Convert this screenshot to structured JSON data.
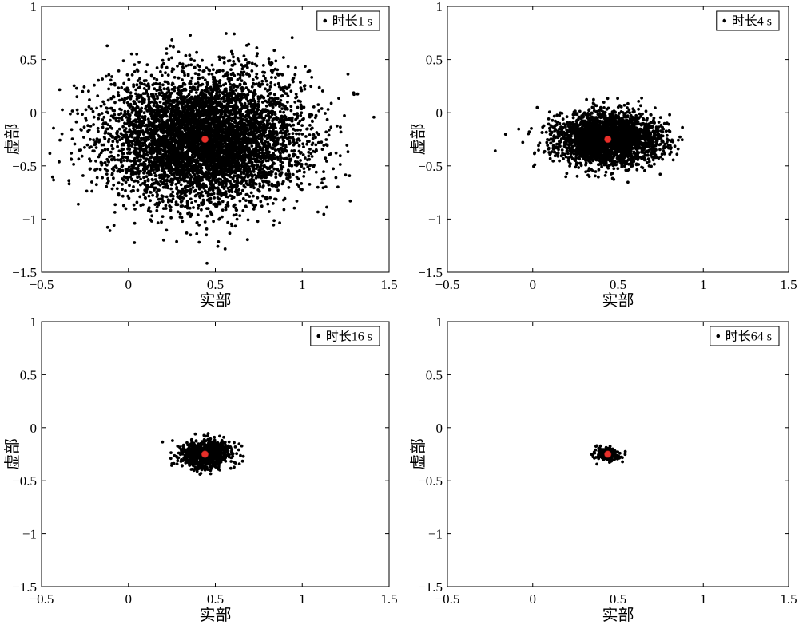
{
  "chart_data": [
    {
      "type": "scatter",
      "legend": "时长1 s",
      "xlabel": "实部",
      "ylabel": "虚部",
      "xlim": [
        -0.5,
        1.5
      ],
      "ylim": [
        -1.5,
        1
      ],
      "xticks": [
        "-0.5",
        "0",
        "0.5",
        "1",
        "1.5"
      ],
      "yticks": [
        "-1.5",
        "-1",
        "-0.5",
        "0",
        "0.5",
        "1"
      ],
      "point_count": 6000,
      "spread": {
        "center": [
          0.44,
          -0.25
        ],
        "sd_real": 0.28,
        "sd_imag": 0.3
      },
      "center_point": {
        "x": 0.44,
        "y": -0.25,
        "color": "#e8302a"
      },
      "point_color": "#000000",
      "legend_position": "top-right"
    },
    {
      "type": "scatter",
      "legend": "时长4 s",
      "xlabel": "实部",
      "ylabel": "虚部",
      "xlim": [
        -0.5,
        1.5
      ],
      "ylim": [
        -1.5,
        1
      ],
      "xticks": [
        "-0.5",
        "0",
        "0.5",
        "1",
        "1.5"
      ],
      "yticks": [
        "-1.5",
        "-1",
        "-0.5",
        "0",
        "0.5",
        "1"
      ],
      "point_count": 3000,
      "spread": {
        "center": [
          0.44,
          -0.25
        ],
        "sd_real": 0.15,
        "sd_imag": 0.12
      },
      "center_point": {
        "x": 0.44,
        "y": -0.25,
        "color": "#e8302a"
      },
      "point_color": "#000000",
      "legend_position": "top-right"
    },
    {
      "type": "scatter",
      "legend": "时长16 s",
      "xlabel": "实部",
      "ylabel": "虚部",
      "xlim": [
        -0.5,
        1.5
      ],
      "ylim": [
        -1.5,
        1
      ],
      "xticks": [
        "-0.5",
        "0",
        "0.5",
        "1",
        "1.5"
      ],
      "yticks": [
        "-1.5",
        "-1",
        "-0.5",
        "0",
        "0.5",
        "1"
      ],
      "point_count": 900,
      "spread": {
        "center": [
          0.44,
          -0.25
        ],
        "sd_real": 0.075,
        "sd_imag": 0.065
      },
      "center_point": {
        "x": 0.44,
        "y": -0.25,
        "color": "#e8302a"
      },
      "point_color": "#000000",
      "legend_position": "top-right"
    },
    {
      "type": "scatter",
      "legend": "时长64 s",
      "xlabel": "实部",
      "ylabel": "虚部",
      "xlim": [
        -0.5,
        1.5
      ],
      "ylim": [
        -1.5,
        1
      ],
      "xticks": [
        "-0.5",
        "0",
        "0.5",
        "1",
        "1.5"
      ],
      "yticks": [
        "-1.5",
        "-1",
        "-0.5",
        "0",
        "0.5",
        "1"
      ],
      "point_count": 260,
      "spread": {
        "center": [
          0.44,
          -0.25
        ],
        "sd_real": 0.035,
        "sd_imag": 0.03
      },
      "center_point": {
        "x": 0.44,
        "y": -0.25,
        "color": "#e8302a"
      },
      "point_color": "#000000",
      "legend_position": "top-right"
    }
  ]
}
